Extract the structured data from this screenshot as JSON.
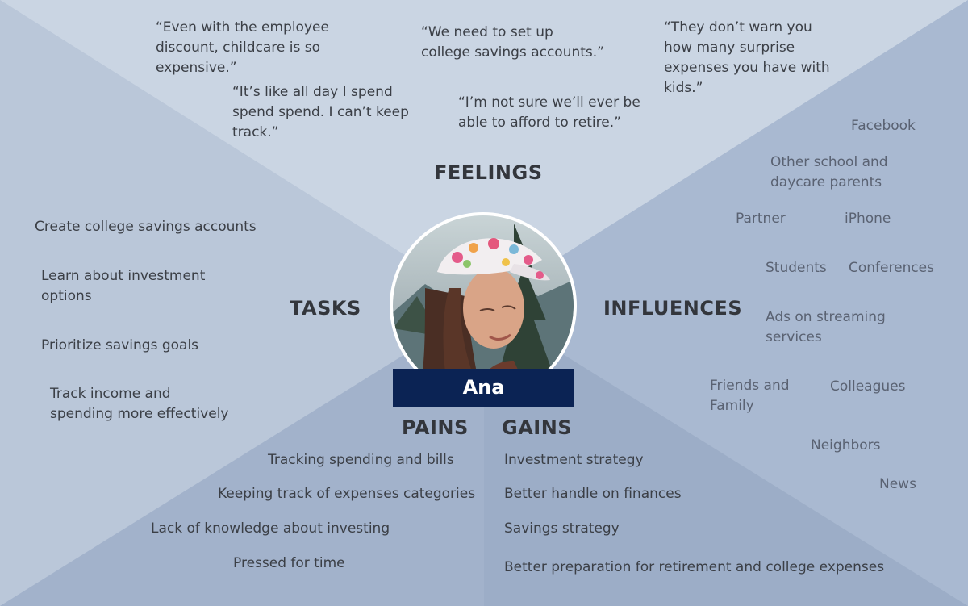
{
  "persona": {
    "name": "Ana"
  },
  "colors": {
    "feelings": "#cad5e3",
    "tasks": "#bac7d9",
    "influences": "#a9b9d1",
    "pains": "#a2b2cb",
    "gains": "#9cadc7",
    "name_bar": "#0b2354"
  },
  "sections": {
    "feelings": {
      "heading": "FEELINGS",
      "quotes": [
        "“Even with the employee\ndiscount, childcare is so\nexpensive.”",
        "“We need to set up\ncollege savings accounts.”",
        "“They don’t warn you\nhow many surprise\nexpenses you have with\nkids.”",
        "“It’s like all day I spend\nspend spend. I can’t keep\ntrack.”",
        "“I’m not sure we’ll ever be\nable to afford to retire.”"
      ]
    },
    "tasks": {
      "heading": "TASKS",
      "items": [
        "Create college savings accounts",
        "Learn about investment\noptions",
        "Prioritize savings goals",
        "Track income and\nspending more effectively"
      ]
    },
    "influences": {
      "heading": "INFLUENCES",
      "items": [
        "Facebook",
        "Other school and\ndaycare parents",
        "Partner",
        "iPhone",
        "Students",
        "Conferences",
        "Ads on streaming\nservices",
        "Friends and\nFamily",
        "Colleagues",
        "Neighbors",
        "News"
      ]
    },
    "pains": {
      "heading": "PAINS",
      "items": [
        "Tracking spending and bills",
        "Keeping track of expenses categories",
        "Lack of knowledge about investing",
        "Pressed for time"
      ]
    },
    "gains": {
      "heading": "GAINS",
      "items": [
        "Investment strategy",
        "Better handle on finances",
        "Savings strategy",
        "Better preparation for retirement and college expenses"
      ]
    }
  }
}
